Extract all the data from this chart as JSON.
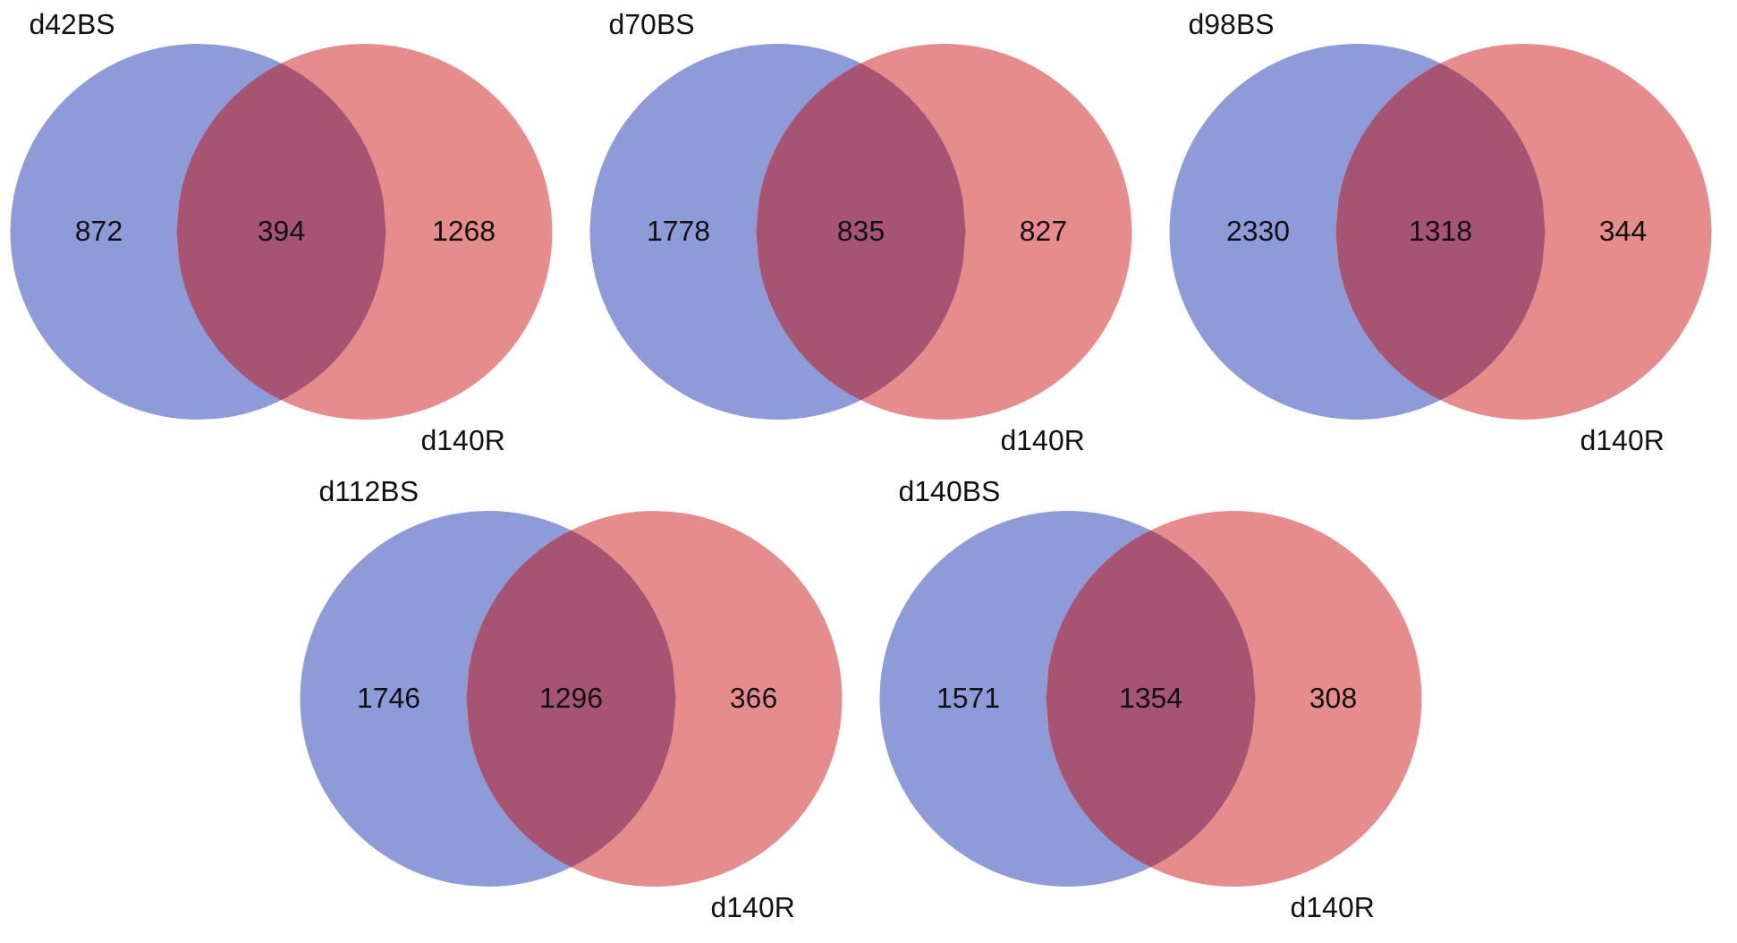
{
  "chart_data": [
    {
      "type": "other",
      "categories": [
        null,
        null,
        null
      ],
      "values": [
        872,
        394,
        1268
      ],
      "data_labels": true,
      "colors": [
        "#8d9bd9",
        "#a65472",
        "#e68c8c"
      ],
      "annotations": [
        "d42BS",
        "d140R"
      ]
    },
    {
      "type": "other",
      "categories": [
        null,
        null,
        null
      ],
      "values": [
        1778,
        835,
        827
      ],
      "data_labels": true,
      "colors": [
        "#8d9bd9",
        "#a65472",
        "#e68c8c"
      ],
      "annotations": [
        "d70BS",
        "d140R"
      ]
    },
    {
      "type": "other",
      "categories": [
        null,
        null,
        null
      ],
      "values": [
        2330,
        1318,
        344
      ],
      "data_labels": true,
      "colors": [
        "#8d9bd9",
        "#a65472",
        "#e68c8c"
      ],
      "annotations": [
        "d98BS",
        "d140R"
      ]
    },
    {
      "type": "other",
      "categories": [
        null,
        null,
        null
      ],
      "values": [
        1746,
        1296,
        366
      ],
      "data_labels": true,
      "colors": [
        "#8d9bd9",
        "#a65472",
        "#e68c8c"
      ],
      "annotations": [
        "d112BS",
        "d140R"
      ]
    },
    {
      "type": "other",
      "categories": [
        null,
        null,
        null
      ],
      "values": [
        1571,
        1354,
        308
      ],
      "data_labels": true,
      "colors": [
        "#8d9bd9",
        "#a65472",
        "#e68c8c"
      ],
      "annotations": [
        "d140BS",
        "d140R"
      ]
    }
  ]
}
